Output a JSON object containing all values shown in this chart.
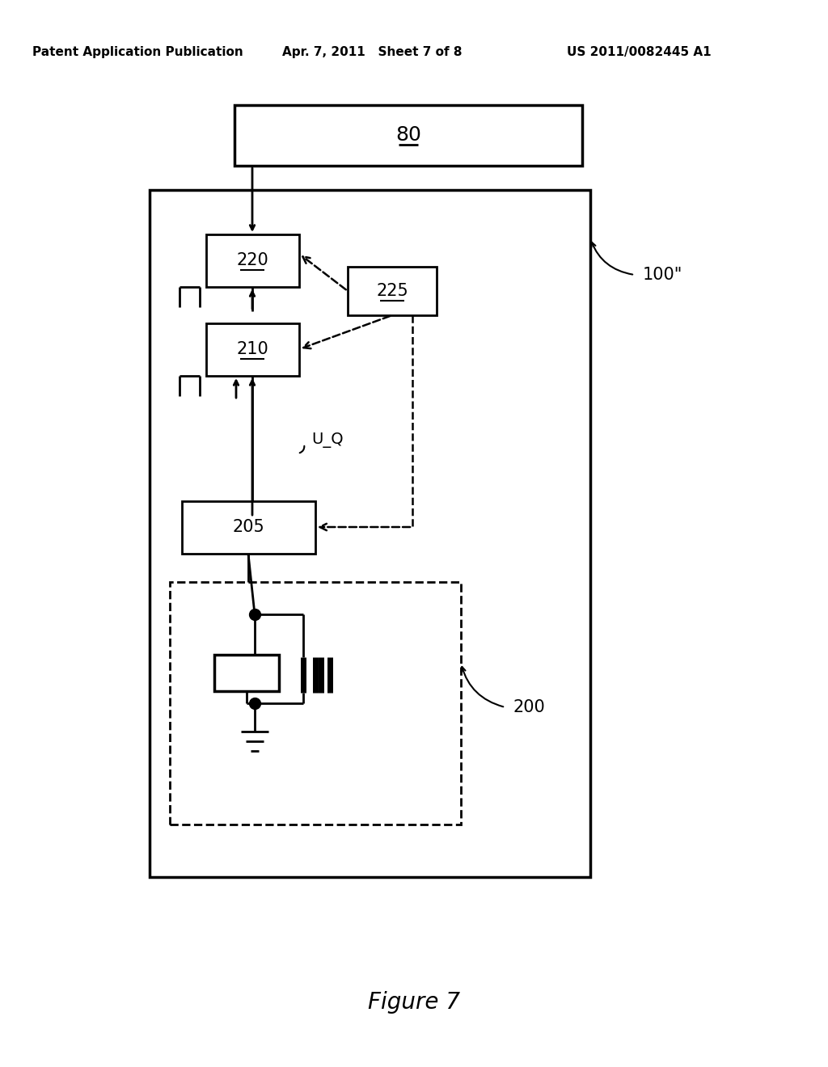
{
  "bg_color": "#ffffff",
  "header_left": "Patent Application Publication",
  "header_center": "Apr. 7, 2011   Sheet 7 of 8",
  "header_right": "US 2011/0082445 A1",
  "figure_label": "Figure 7",
  "box80_label": "80",
  "box220_label": "220",
  "box225_label": "225",
  "box210_label": "210",
  "box205_label": "205",
  "label100": "100\"",
  "label200": "200",
  "label_uq": "U_Q"
}
